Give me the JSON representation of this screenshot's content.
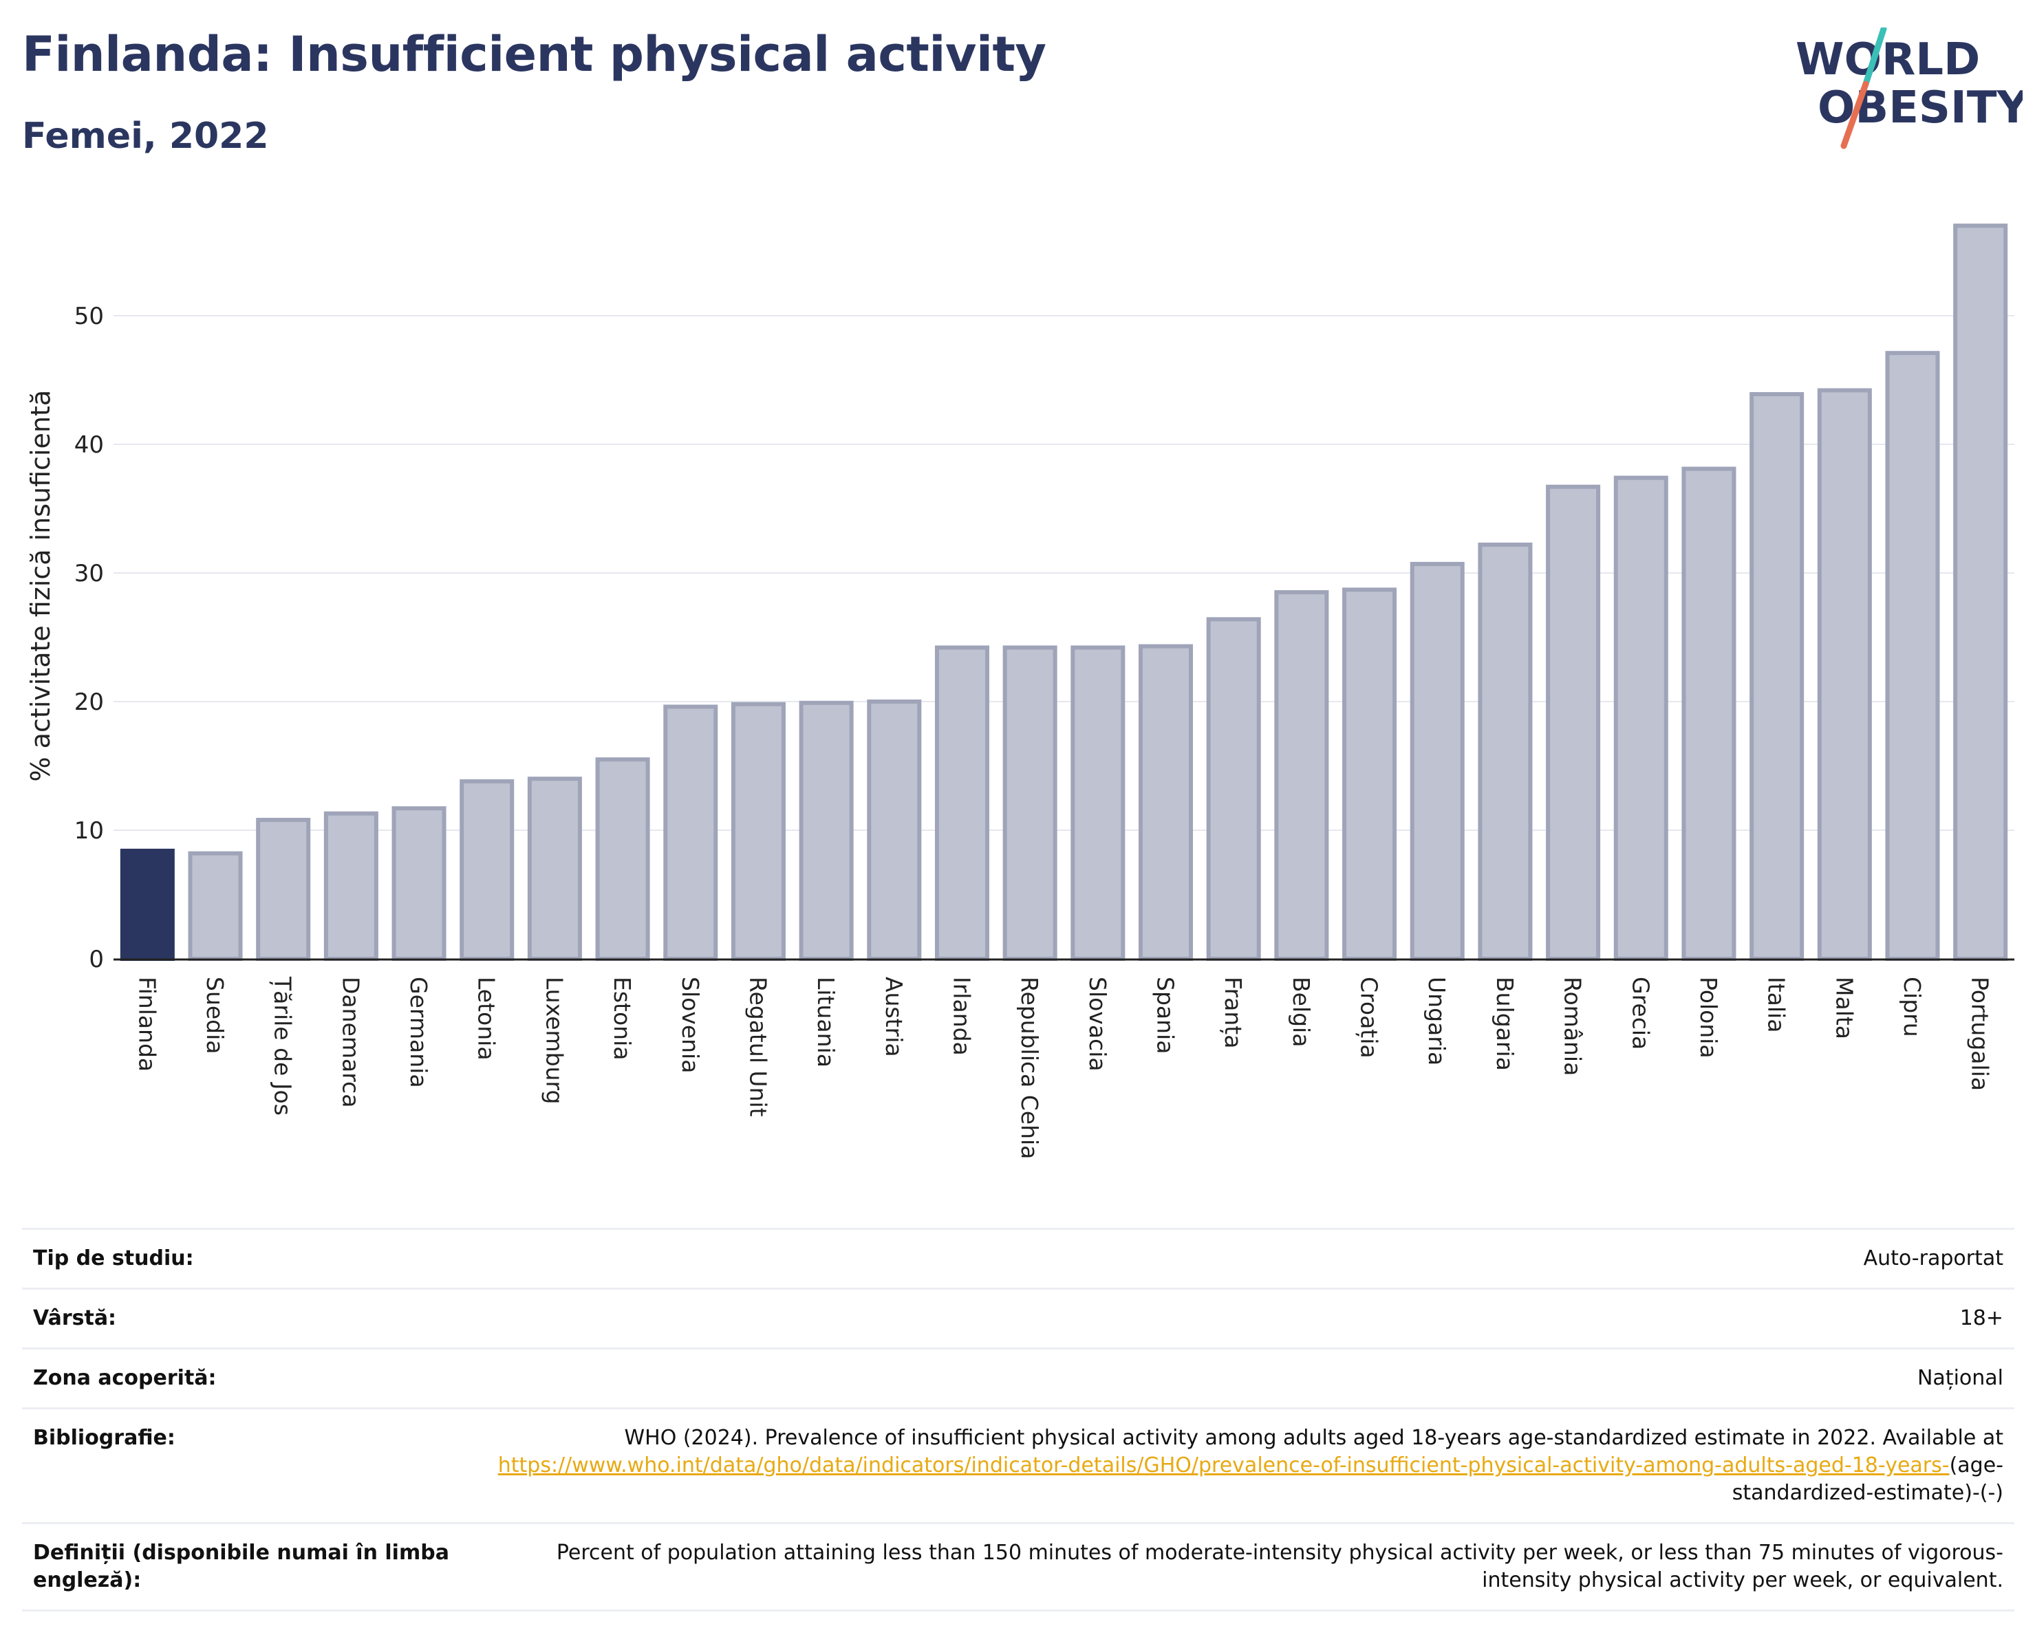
{
  "header": {
    "title": "Finlanda: Insufficient physical activity",
    "subtitle": "Femei, 2022"
  },
  "logo": {
    "line1": "WORLD",
    "line2": "OBESITY",
    "accent1": "#3bbfb7",
    "accent2": "#e76f51"
  },
  "colors": {
    "highlight": "#2b3660",
    "bar": "#bfc2d0",
    "bar_border": "#9fa4b9",
    "grid": "#e6e8ee"
  },
  "chart_data": {
    "type": "bar",
    "ylabel": "% activitate fizică insuficientă",
    "xlabel": "",
    "ylim": [
      0,
      58
    ],
    "yticks": [
      0,
      10,
      20,
      30,
      40,
      50
    ],
    "grid": true,
    "highlight": "Finlanda",
    "categories": [
      "Finlanda",
      "Suedia",
      "Țările de Jos",
      "Danemarca",
      "Germania",
      "Letonia",
      "Luxemburg",
      "Estonia",
      "Slovenia",
      "Regatul Unit",
      "Lituania",
      "Austria",
      "Irlanda",
      "Republica Cehia",
      "Slovacia",
      "Spania",
      "Franța",
      "Belgia",
      "Croația",
      "Ungaria",
      "Bulgaria",
      "România",
      "Grecia",
      "Polonia",
      "Italia",
      "Malta",
      "Cipru",
      "Portugalia"
    ],
    "values": [
      8.4,
      8.2,
      10.8,
      11.3,
      11.7,
      13.8,
      14.0,
      15.5,
      19.6,
      19.8,
      19.9,
      20.0,
      24.2,
      24.2,
      24.2,
      24.3,
      26.4,
      28.5,
      28.7,
      30.7,
      32.2,
      36.7,
      37.4,
      38.1,
      43.9,
      44.2,
      47.1,
      57.0
    ]
  },
  "meta": {
    "study_type": {
      "label": "Tip de studiu:",
      "value": "Auto-raportat"
    },
    "age": {
      "label": "Vârstă:",
      "value": "18+"
    },
    "area": {
      "label": "Zona acoperită:",
      "value": "Național"
    },
    "bibliography": {
      "label": "Bibliografie:",
      "text": "WHO (2024). Prevalence of insufficient physical activity among adults aged 18-years age-standardized estimate in 2022. Available at",
      "link": "https://www.who.int/data/gho/data/indicators/indicator-details/GHO/prevalence-of-insufficient-physical-activity-among-adults-aged-18-years-",
      "suffix": "(age-standardized-estimate)-(-)"
    },
    "definitions": {
      "label": "Definiții (disponibile numai în limba engleză):",
      "value": "Percent of population attaining less than 150 minutes of moderate-intensity physical activity per week, or less than 75 minutes of vigorous-intensity physical activity per week, or equivalent."
    }
  }
}
